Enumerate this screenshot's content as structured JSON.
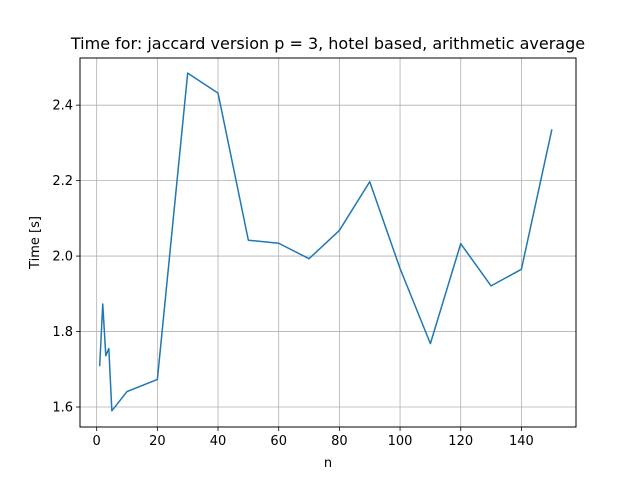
{
  "chart_data": {
    "type": "line",
    "title": "Time for: jaccard version p = 3, hotel based, arithmetic average",
    "xlabel": "n",
    "ylabel": "Time [s]",
    "xlim": [
      -5.5,
      158
    ],
    "ylim": [
      1.547,
      2.525
    ],
    "xticks": [
      0,
      20,
      40,
      60,
      80,
      100,
      120,
      140
    ],
    "yticks": [
      1.6,
      1.8,
      2.0,
      2.2,
      2.4
    ],
    "xtick_labels": [
      "0",
      "20",
      "40",
      "60",
      "80",
      "100",
      "120",
      "140"
    ],
    "ytick_labels": [
      "1.6",
      "1.8",
      "2.0",
      "2.2",
      "2.4"
    ],
    "grid": true,
    "color": "#1f77b4",
    "series": [
      {
        "x": [
          1,
          2,
          3,
          4,
          5,
          10,
          20,
          30,
          40,
          50,
          60,
          70,
          80,
          90,
          100,
          110,
          120,
          130,
          140,
          150
        ],
        "y": [
          1.71,
          1.873,
          1.736,
          1.755,
          1.59,
          1.641,
          1.673,
          2.485,
          2.432,
          2.042,
          2.034,
          1.993,
          2.068,
          2.197,
          1.967,
          1.768,
          2.033,
          1.921,
          1.965,
          2.334
        ]
      }
    ]
  }
}
